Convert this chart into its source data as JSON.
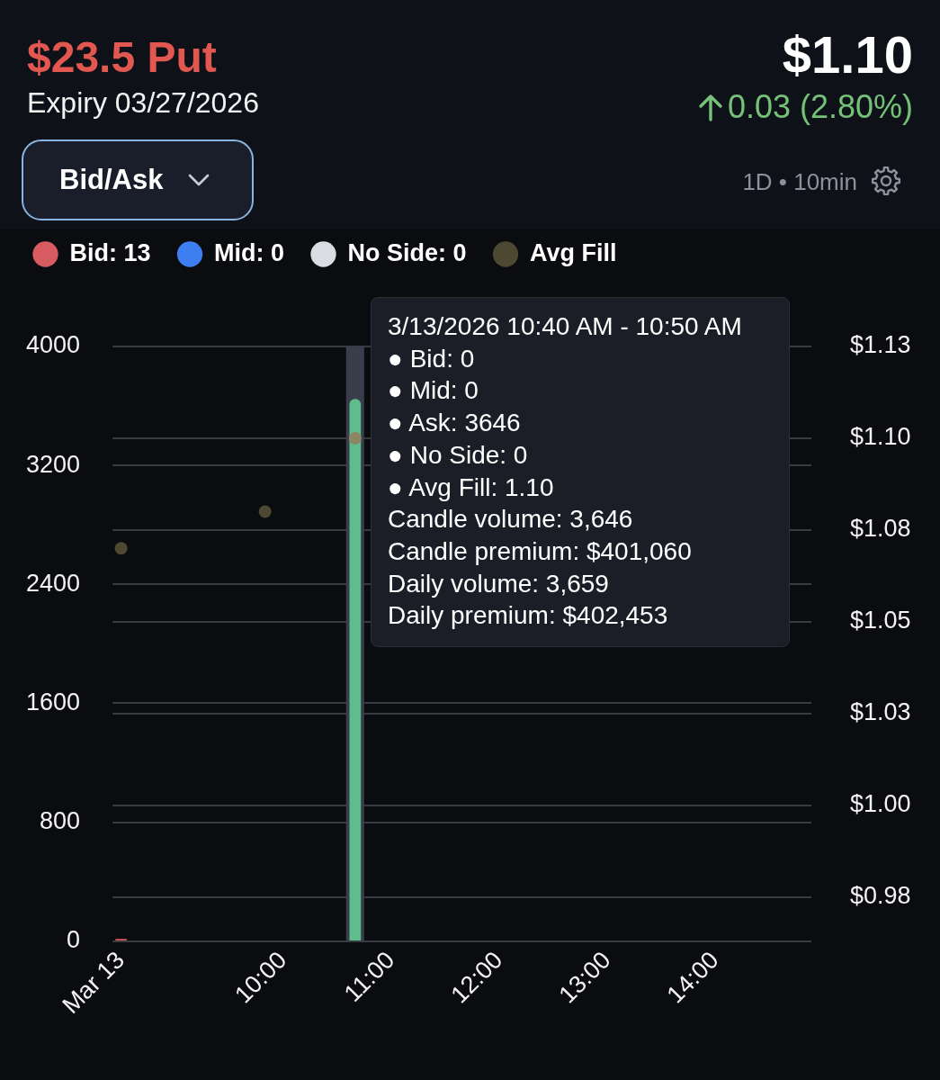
{
  "chart_data": {
    "type": "bar",
    "title": "$23.5 Put",
    "subtitle": "Expiry 03/27/2026",
    "xlim": [
      8.42,
      14.89
    ],
    "xticks": [
      {
        "value": 8.5,
        "label": "Mar 13"
      },
      {
        "value": 10,
        "label": "10:00"
      },
      {
        "value": 11,
        "label": "11:00"
      },
      {
        "value": 12,
        "label": "12:00"
      },
      {
        "value": 13,
        "label": "13:00"
      },
      {
        "value": 14,
        "label": "14:00"
      }
    ],
    "ylim": [
      0,
      4000
    ],
    "yticks": [
      0,
      800,
      1600,
      2400,
      3200,
      4000
    ],
    "y2lim": [
      0.963,
      1.125
    ],
    "y2ticks": [
      {
        "value": 1.125,
        "label": "$1.13"
      },
      {
        "value": 1.1,
        "label": "$1.10"
      },
      {
        "value": 1.075,
        "label": "$1.08"
      },
      {
        "value": 1.05,
        "label": "$1.05"
      },
      {
        "value": 1.025,
        "label": "$1.03"
      },
      {
        "value": 1,
        "label": "$1.00"
      },
      {
        "value": 0.975,
        "label": "$0.98"
      }
    ],
    "series": [
      {
        "name": "Bid: 13",
        "color": "#d95b62",
        "x": [
          8.5
        ],
        "values": [
          13
        ]
      },
      {
        "name": "Mid: 0",
        "color": "#3d7ff0"
      },
      {
        "color": "#5fbd8d",
        "x": [
          10.667
        ],
        "values": [
          3646
        ]
      },
      {
        "name": "No Side: 0",
        "color": "#d9dce1"
      },
      {
        "name": "Avg Fill",
        "type": "scatter",
        "axis": "y2",
        "color": "#4d4831",
        "colors": [
          "#4d4831",
          "#4d4831",
          "#8c8662"
        ],
        "x": [
          8.5,
          9.833,
          10.667
        ],
        "values": [
          1.07,
          1.08,
          1.1
        ]
      }
    ],
    "bands": [
      {
        "axis": "x",
        "from": 10.583,
        "to": 10.75,
        "color": "#3a3d4b"
      }
    ],
    "marker": "circle",
    "grid": "y",
    "legend": "top left",
    "annotations": [
      "$1.10",
      "0.03 (2.80%)",
      "Bid/Ask",
      "1D • 10min",
      "3/13/2026 10:40 AM - 10:50 AM",
      "● Bid: 0",
      "● Mid: 0",
      "● Ask: 3646",
      "● No Side: 0",
      "● Avg Fill: 1.10",
      "Candle volume: 3,646",
      "Candle premium: $401,060",
      "Daily volume: 3,659",
      "Daily premium: $402,453"
    ]
  }
}
